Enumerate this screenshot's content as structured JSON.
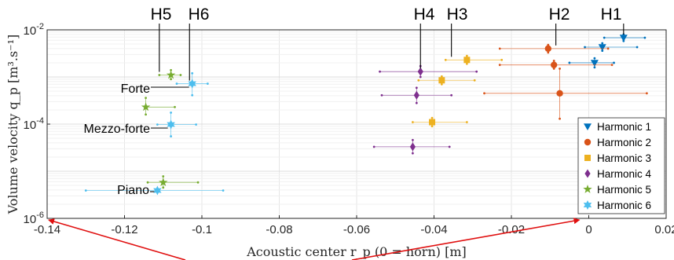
{
  "chart_data": {
    "type": "scatter",
    "x_axis": {
      "label": "Acoustic center r_p (0 = horn) [m]",
      "min": -0.14,
      "max": 0.02,
      "ticks": [
        -0.14,
        -0.12,
        -0.1,
        -0.08,
        -0.06,
        -0.04,
        -0.02,
        0,
        0.02
      ],
      "tick_labels": [
        "-0.14",
        "-0.12",
        "-0.1",
        "-0.08",
        "-0.06",
        "-0.04",
        "-0.02",
        "0",
        "0.02"
      ]
    },
    "y_axis": {
      "label": "Volume velocity q_p [m³.s⁻¹]",
      "scale": "log",
      "min": 1e-06,
      "max": 0.01,
      "ticks": [
        1e-06,
        0.0001,
        0.01
      ],
      "tick_labels": [
        {
          "base": "10",
          "exp": "-6"
        },
        {
          "base": "10",
          "exp": "-4"
        },
        {
          "base": "10",
          "exp": "-2"
        }
      ]
    },
    "grid": true,
    "legend_position": "bottom-right",
    "harmonic_labels": [
      "H1",
      "H2",
      "H3",
      "H4",
      "H5",
      "H6"
    ],
    "dynamic_labels": [
      "Forte",
      "Mezzo-forte",
      "Piano"
    ],
    "series": [
      {
        "name": "Harmonic 1",
        "color": "#0072BD",
        "marker": "triangle-down",
        "points": [
          {
            "x": 0.009,
            "y": 0.0068,
            "xmin": 0.004,
            "xmax": 0.0145,
            "ymin": 0.0058,
            "ymax": 0.008
          },
          {
            "x": 0.0035,
            "y": 0.0043,
            "xmin": -0.001,
            "xmax": 0.0125,
            "ymin": 0.0036,
            "ymax": 0.0052
          },
          {
            "x": 0.0015,
            "y": 0.002,
            "xmin": -0.005,
            "xmax": 0.0065,
            "ymin": 0.0016,
            "ymax": 0.0025
          }
        ]
      },
      {
        "name": "Harmonic 2",
        "color": "#D95319",
        "marker": "circle",
        "points": [
          {
            "x": -0.0105,
            "y": 0.004,
            "xmin": -0.023,
            "xmax": 0.005,
            "ymin": 0.0033,
            "ymax": 0.0048
          },
          {
            "x": -0.009,
            "y": 0.0018,
            "xmin": -0.023,
            "xmax": 0.006,
            "ymin": 0.0015,
            "ymax": 0.0022
          },
          {
            "x": -0.0075,
            "y": 0.00045,
            "xmin": -0.027,
            "xmax": 0.015,
            "ymin": 0.00013,
            "ymax": 0.0015
          }
        ]
      },
      {
        "name": "Harmonic 3",
        "color": "#EDB120",
        "marker": "square",
        "points": [
          {
            "x": -0.0315,
            "y": 0.0023,
            "xmin": -0.037,
            "xmax": -0.0225,
            "ymin": 0.0019,
            "ymax": 0.0028
          },
          {
            "x": -0.038,
            "y": 0.00085,
            "xmin": -0.044,
            "xmax": -0.0295,
            "ymin": 0.0007,
            "ymax": 0.00103
          },
          {
            "x": -0.0405,
            "y": 0.00011,
            "xmin": -0.0455,
            "xmax": -0.0315,
            "ymin": 9e-05,
            "ymax": 0.000135
          }
        ]
      },
      {
        "name": "Harmonic 4",
        "color": "#7E2F8E",
        "marker": "diamond",
        "points": [
          {
            "x": -0.0435,
            "y": 0.0013,
            "xmin": -0.054,
            "xmax": -0.029,
            "ymin": 0.001,
            "ymax": 0.0017
          },
          {
            "x": -0.0445,
            "y": 0.00041,
            "xmin": -0.0535,
            "xmax": -0.0355,
            "ymin": 0.00028,
            "ymax": 0.00059
          },
          {
            "x": -0.0455,
            "y": 3.3e-05,
            "xmin": -0.0555,
            "xmax": -0.036,
            "ymin": 2.4e-05,
            "ymax": 4.6e-05
          }
        ]
      },
      {
        "name": "Harmonic 5",
        "color": "#77AC30",
        "marker": "pentagram",
        "points": [
          {
            "x": -0.108,
            "y": 0.0011,
            "xmin": -0.111,
            "xmax": -0.1055,
            "ymin": 0.0009,
            "ymax": 0.0014
          },
          {
            "x": -0.1145,
            "y": 0.00023,
            "xmin": -0.1145,
            "xmax": -0.107,
            "ymin": 0.00016,
            "ymax": 0.00036
          },
          {
            "x": -0.11,
            "y": 5.8e-06,
            "xmin": -0.114,
            "xmax": -0.101,
            "ymin": 4.5e-06,
            "ymax": 7.8e-06
          }
        ]
      },
      {
        "name": "Harmonic 6",
        "color": "#4DBEEE",
        "marker": "hexagram",
        "points": [
          {
            "x": -0.1025,
            "y": 0.00072,
            "xmin": -0.1065,
            "xmax": -0.0985,
            "ymin": 0.00041,
            "ymax": 0.0012
          },
          {
            "x": -0.108,
            "y": 9.8e-05,
            "xmin": -0.1115,
            "xmax": -0.1015,
            "ymin": 5.5e-05,
            "ymax": 0.000175
          },
          {
            "x": -0.1115,
            "y": 3.9e-06,
            "xmin": -0.13,
            "xmax": -0.0945,
            "ymin": 3.7e-06,
            "ymax": 4.2e-06
          }
        ]
      }
    ]
  }
}
